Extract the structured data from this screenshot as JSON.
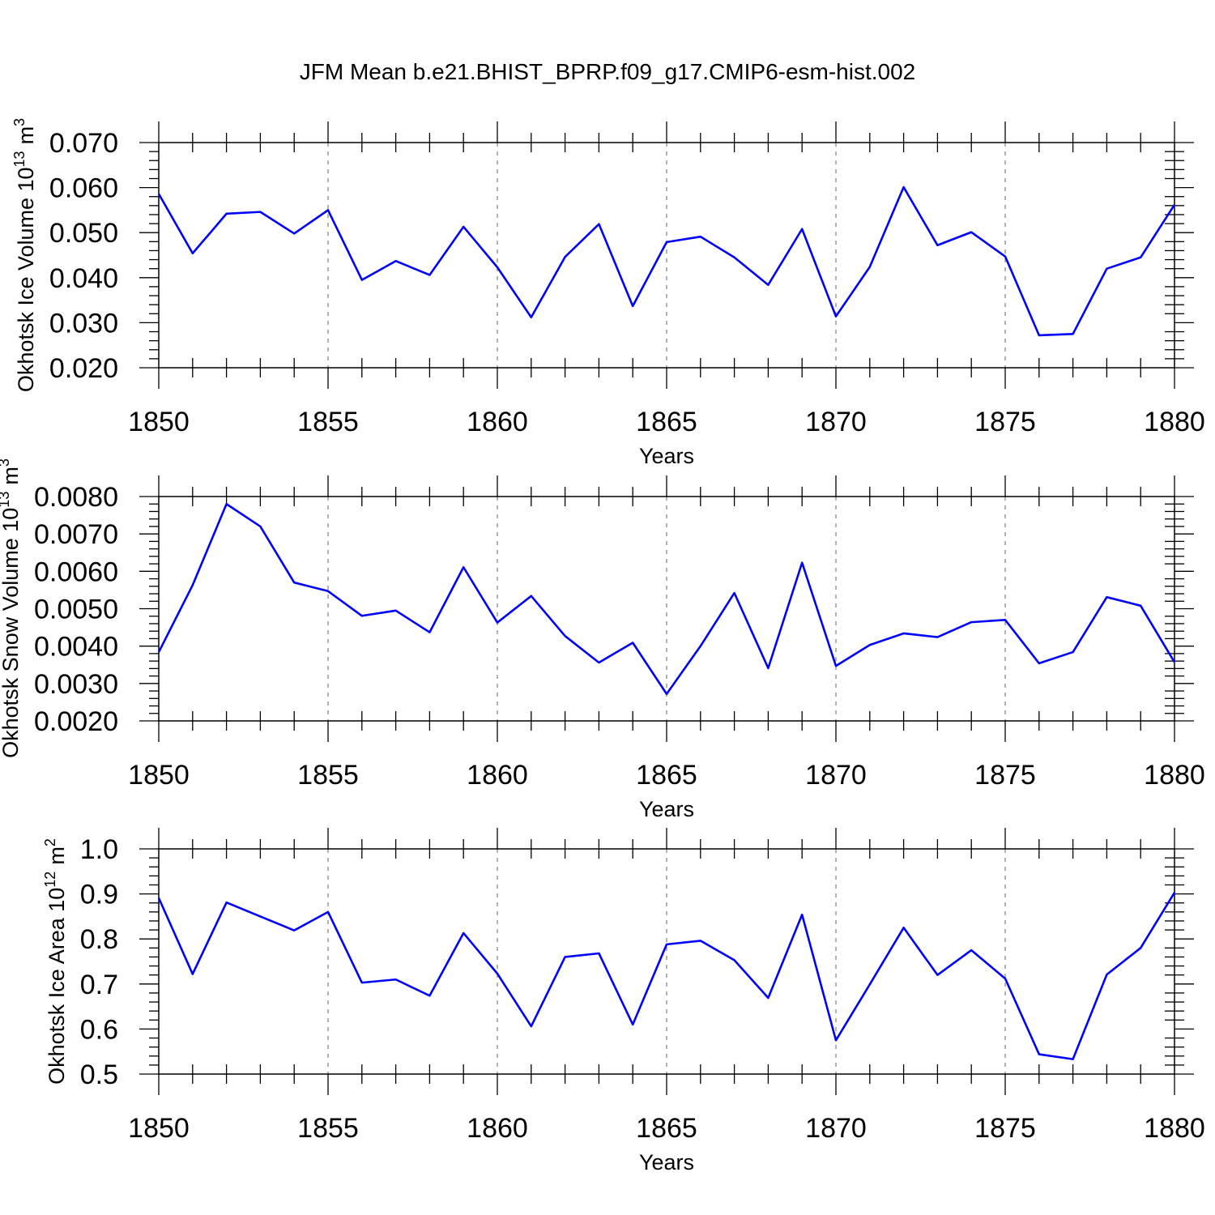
{
  "page": {
    "title": "JFM Mean b.e21.BHIST_BPRP.f09_g17.CMIP6-esm-hist.002"
  },
  "colors": {
    "series": "#0000ff",
    "grid": "#7f7f7f",
    "frame": "#000000"
  },
  "chart_data": [
    {
      "type": "line",
      "title": "JFM Mean b.e21.BHIST_BPRP.f09_g17.CMIP6-esm-hist.002",
      "xlabel": "Years",
      "ylabel": "Okhotsk Ice Volume 10",
      "ylabel_exp": "13",
      "ylabel_unit": "m",
      "ylabel_unit_exp": "3",
      "xlim": [
        1850,
        1880
      ],
      "ylim": [
        0.02,
        0.07
      ],
      "grid": "vertical dashed",
      "x_ticks": [
        1850,
        1855,
        1860,
        1865,
        1870,
        1875,
        1880
      ],
      "x_tick_labels": [
        "1850",
        "1855",
        "1860",
        "1865",
        "1870",
        "1875",
        "1880"
      ],
      "y_ticks": [
        0.02,
        0.03,
        0.04,
        0.05,
        0.06,
        0.07
      ],
      "y_tick_labels": [
        "0.020",
        "0.030",
        "0.040",
        "0.050",
        "0.060",
        "0.070"
      ],
      "y_minor_step": 0.002,
      "x": [
        1850,
        1851,
        1852,
        1853,
        1854,
        1855,
        1856,
        1857,
        1858,
        1859,
        1860,
        1861,
        1862,
        1863,
        1864,
        1865,
        1866,
        1867,
        1868,
        1869,
        1870,
        1871,
        1872,
        1873,
        1874,
        1875,
        1876,
        1877,
        1878,
        1879,
        1880
      ],
      "values": [
        0.0586,
        0.0454,
        0.0542,
        0.0546,
        0.0498,
        0.055,
        0.0395,
        0.0437,
        0.0406,
        0.0513,
        0.0423,
        0.0312,
        0.0446,
        0.0519,
        0.0337,
        0.0479,
        0.0491,
        0.0445,
        0.0384,
        0.0508,
        0.0314,
        0.0424,
        0.0601,
        0.0472,
        0.0501,
        0.0447,
        0.0272,
        0.0275,
        0.042,
        0.0445,
        0.0562
      ]
    },
    {
      "type": "line",
      "xlabel": "Years",
      "ylabel": "Okhotsk Snow Volume 10",
      "ylabel_exp": "13",
      "ylabel_unit": "m",
      "ylabel_unit_exp": "3",
      "xlim": [
        1850,
        1880
      ],
      "ylim": [
        0.002,
        0.008
      ],
      "grid": "vertical dashed",
      "x_ticks": [
        1850,
        1855,
        1860,
        1865,
        1870,
        1875,
        1880
      ],
      "x_tick_labels": [
        "1850",
        "1855",
        "1860",
        "1865",
        "1870",
        "1875",
        "1880"
      ],
      "y_ticks": [
        0.002,
        0.003,
        0.004,
        0.005,
        0.006,
        0.007,
        0.008
      ],
      "y_tick_labels": [
        "0.0020",
        "0.0030",
        "0.0040",
        "0.0050",
        "0.0060",
        "0.0070",
        "0.0080"
      ],
      "y_minor_step": 0.0002,
      "x": [
        1850,
        1851,
        1852,
        1853,
        1854,
        1855,
        1856,
        1857,
        1858,
        1859,
        1860,
        1861,
        1862,
        1863,
        1864,
        1865,
        1866,
        1867,
        1868,
        1869,
        1870,
        1871,
        1872,
        1873,
        1874,
        1875,
        1876,
        1877,
        1878,
        1879,
        1880
      ],
      "values": [
        0.00384,
        0.00563,
        0.0078,
        0.0072,
        0.0057,
        0.00547,
        0.00481,
        0.00495,
        0.00437,
        0.00611,
        0.00463,
        0.00534,
        0.00427,
        0.00356,
        0.00409,
        0.00272,
        0.004,
        0.00542,
        0.00341,
        0.00623,
        0.00347,
        0.00403,
        0.00434,
        0.00424,
        0.00464,
        0.0047,
        0.00354,
        0.00384,
        0.00531,
        0.00508,
        0.00357
      ]
    },
    {
      "type": "line",
      "xlabel": "Years",
      "ylabel": "Okhotsk Ice Area 10",
      "ylabel_exp": "12",
      "ylabel_unit": "m",
      "ylabel_unit_exp": "2",
      "xlim": [
        1850,
        1880
      ],
      "ylim": [
        0.5,
        1.0
      ],
      "grid": "vertical dashed",
      "x_ticks": [
        1850,
        1855,
        1860,
        1865,
        1870,
        1875,
        1880
      ],
      "x_tick_labels": [
        "1850",
        "1855",
        "1860",
        "1865",
        "1870",
        "1875",
        "1880"
      ],
      "y_ticks": [
        0.5,
        0.6,
        0.7,
        0.8,
        0.9,
        1.0
      ],
      "y_tick_labels": [
        "0.5",
        "0.6",
        "0.7",
        "0.8",
        "0.9",
        "1.0"
      ],
      "y_minor_step": 0.02,
      "x": [
        1850,
        1851,
        1852,
        1853,
        1854,
        1855,
        1856,
        1857,
        1858,
        1859,
        1860,
        1861,
        1862,
        1863,
        1864,
        1865,
        1866,
        1867,
        1868,
        1869,
        1870,
        1871,
        1872,
        1873,
        1874,
        1875,
        1876,
        1877,
        1878,
        1879,
        1880
      ],
      "values": [
        0.891,
        0.722,
        0.881,
        0.85,
        0.819,
        0.86,
        0.703,
        0.71,
        0.674,
        0.813,
        0.723,
        0.606,
        0.76,
        0.768,
        0.61,
        0.788,
        0.796,
        0.753,
        0.669,
        0.854,
        0.575,
        0.699,
        0.825,
        0.72,
        0.775,
        0.712,
        0.544,
        0.533,
        0.721,
        0.78,
        0.903
      ]
    }
  ]
}
